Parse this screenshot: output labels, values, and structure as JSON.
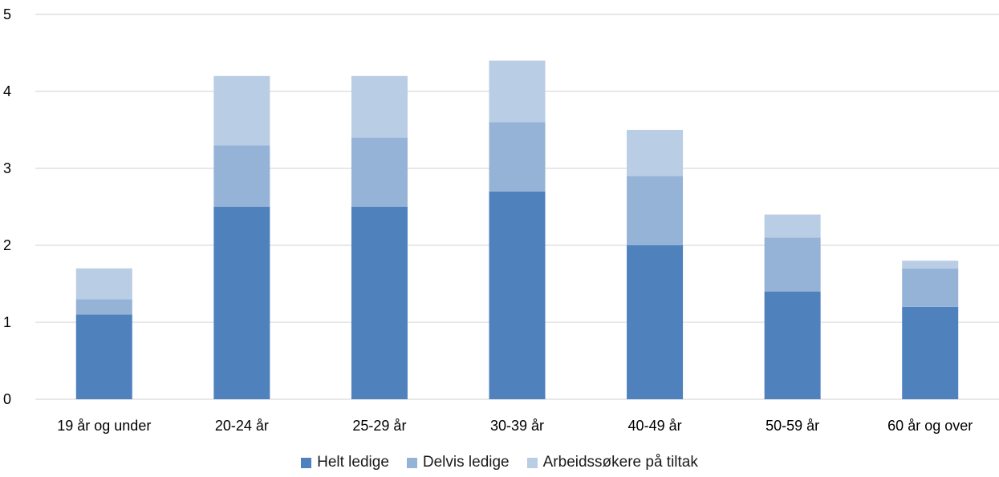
{
  "chart_data": {
    "type": "bar",
    "stacked": true,
    "categories": [
      "19 år og under",
      "20-24 år",
      "25-29 år",
      "30-39 år",
      "40-49 år",
      "50-59 år",
      "60 år og over"
    ],
    "series": [
      {
        "name": "Helt ledige",
        "color": "#4f81bd",
        "values": [
          1.1,
          2.5,
          2.5,
          2.7,
          2.0,
          1.4,
          1.2
        ]
      },
      {
        "name": "Delvis ledige",
        "color": "#95b3d7",
        "values": [
          0.2,
          0.8,
          0.9,
          0.9,
          0.9,
          0.7,
          0.5
        ]
      },
      {
        "name": "Arbeidssøkere på tiltak",
        "color": "#b9cde5",
        "values": [
          0.4,
          0.9,
          0.8,
          0.8,
          0.6,
          0.3,
          0.1
        ]
      }
    ],
    "yticks": [
      "0",
      "1",
      "2",
      "3",
      "4",
      "5"
    ],
    "ylim": [
      0,
      5
    ],
    "grid": true,
    "legend_position": "bottom"
  }
}
